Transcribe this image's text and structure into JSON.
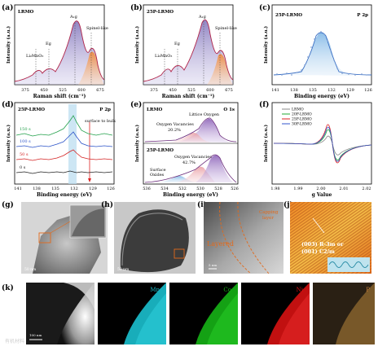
{
  "panels": {
    "a": {
      "letter": "(a)",
      "sample": "LRMO",
      "xlabel": "Raman shift (cm⁻¹)",
      "ylabel": "Intensity (a.u.)",
      "xticks": [
        "375",
        "450",
        "525",
        "600",
        "675"
      ],
      "peaks": [
        "Li₂MnO₃",
        "Eɡ",
        "A₁ɡ",
        "Spinel-like"
      ]
    },
    "b": {
      "letter": "(b)",
      "sample": "25P-LRMO",
      "xlabel": "Raman shift (cm⁻¹)",
      "ylabel": "Intensity (a.u.)",
      "xticks": [
        "375",
        "450",
        "525",
        "600",
        "675"
      ],
      "peaks": [
        "Li₂MnO₃",
        "Eɡ",
        "A₁ɡ",
        "Spinel-like"
      ]
    },
    "c": {
      "letter": "(c)",
      "sample": "25P-LRMO",
      "orbital": "P 2p",
      "xlabel": "Binding energy (eV)",
      "ylabel": "Intensity (a.u.)",
      "xticks": [
        "141",
        "138",
        "135",
        "132",
        "129",
        "126"
      ]
    },
    "d": {
      "letter": "(d)",
      "sample": "25P-LRMO",
      "orbital": "P 2p",
      "annotation": "surface to bulk",
      "xlabel": "Binding energy (eV)",
      "ylabel": "Intensity (a.u.)",
      "xticks": [
        "141",
        "138",
        "135",
        "132",
        "129",
        "126"
      ],
      "depths": [
        "150 s",
        "100 s",
        "50 s",
        "0 s"
      ]
    },
    "e": {
      "letter": "(e)",
      "orbital": "O 1s",
      "sample_top": "LRMO",
      "sample_bottom": "25P-LRMO",
      "lattice": "Littice Oxygen",
      "vacancy_top": "Oxygen Vacancies",
      "vacancy_top_pct": "20.2%",
      "vacancy_bottom": "Oxygen Vacancies",
      "vacancy_bottom_pct": "42.7%",
      "surface_oxides": "Surface\nOxides",
      "xlabel": "Binding energy (eV)",
      "ylabel": "Intensity (a.u.)",
      "xticks": [
        "536",
        "534",
        "532",
        "530",
        "528",
        "526"
      ]
    },
    "f": {
      "letter": "(f)",
      "xlabel": "g Value",
      "ylabel": "Intensity (a.u.)",
      "xticks": [
        "1.98",
        "1.99",
        "2.00",
        "2.01",
        "2.02"
      ],
      "legend": [
        "LRMO",
        "20P-LRMO",
        "25P-LRMO",
        "30P-LRMO"
      ]
    },
    "g": {
      "letter": "(g)",
      "scale": "50 nm"
    },
    "h": {
      "letter": "(h)",
      "scale": "50 nm"
    },
    "i": {
      "letter": "(i)",
      "layered": "Layered",
      "capping": "Capping\nlayer",
      "scale": "5 nm"
    },
    "j": {
      "letter": "(j)",
      "line1": "(003) R-3m or",
      "line2": "(001) C2/m"
    },
    "k": {
      "letter": "(k)",
      "scale": "100 nm",
      "maps": [
        "Mn",
        "Co",
        "Ni",
        "P"
      ]
    }
  },
  "watermark": "有机材料",
  "colors": {
    "mn": "#19b6c4",
    "co": "#16b316",
    "ni": "#d61212",
    "p": "#b8863a",
    "lrmo": "#888888",
    "p20": "#22aa33",
    "p25": "#dd2222",
    "p30": "#3355cc",
    "label_orange": "#e36a1b"
  }
}
